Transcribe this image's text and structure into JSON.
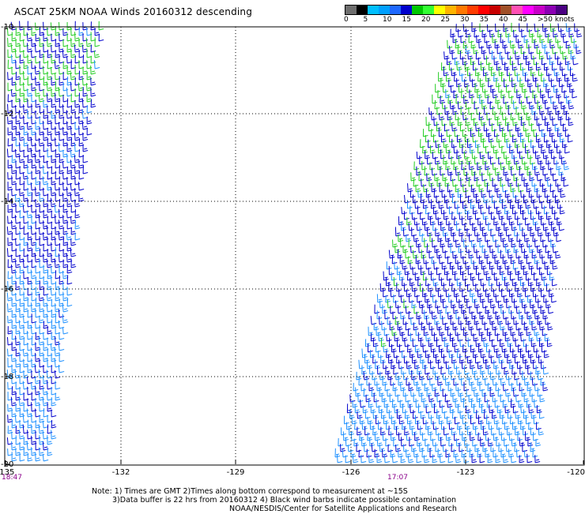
{
  "title": "ASCAT 25KM NOAA Winds 20160312 descending",
  "legend": {
    "colors": [
      "#6e6e6e",
      "#000000",
      "#00bfff",
      "#00a0ff",
      "#1e68ff",
      "#0000cd",
      "#00c800",
      "#32ff32",
      "#ffff00",
      "#ffb400",
      "#ff7800",
      "#ff3c00",
      "#ff0000",
      "#c80000",
      "#a05028",
      "#ff50b4",
      "#ff00ff",
      "#c800c8",
      "#8c00b4",
      "#4b0082"
    ],
    "labels": [
      "0",
      "5",
      "10",
      "15",
      "20",
      "25",
      "30",
      "35",
      "40",
      "45",
      ">50 knots"
    ]
  },
  "map": {
    "lon_ticks": [
      "-135",
      "-132",
      "-129",
      "-126",
      "-123",
      "-120"
    ],
    "lat_ticks": [
      "-10",
      "-12",
      "-14",
      "-16",
      "-18",
      "-20"
    ],
    "wind_colors": {
      "light": "#1e90ff",
      "medium": "#0000cd",
      "strong": "#22cc22"
    }
  },
  "times": {
    "left": "18:47",
    "right": "17:07"
  },
  "notes": {
    "line1": "Note: 1) Times are GMT 2)Times along bottom correspond to measurement at ~15S",
    "line2": "3)Data buffer is 22 hrs from 20160312 4) Black wind barbs indicate possible contamination",
    "line3": "NOAA/NESDIS/Center for Satellite Applications and Research"
  }
}
